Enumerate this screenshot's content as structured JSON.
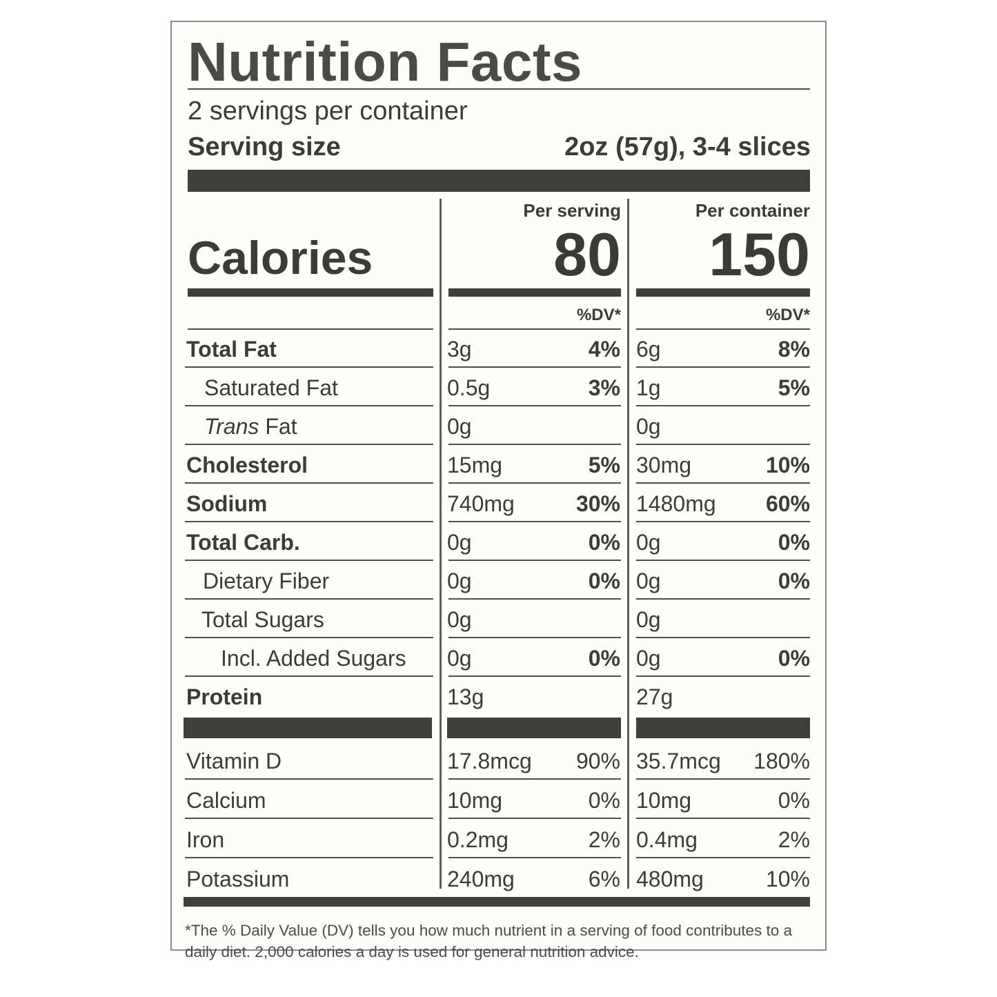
{
  "title": "Nutrition Facts",
  "servings_per_container": "2 servings per container",
  "serving_size_label": "Serving size",
  "serving_size_value": "2oz (57g), 3-4 slices",
  "calories_label": "Calories",
  "per_serving_label": "Per serving",
  "per_container_label": "Per container",
  "calories_per_serving": "80",
  "calories_per_container": "150",
  "dv_header": "%DV*",
  "nutrients": [
    {
      "name": "Total Fat",
      "serv_amt": "3g",
      "serv_dv": "4%",
      "cont_amt": "6g",
      "cont_dv": "8%"
    },
    {
      "name": "Saturated Fat",
      "serv_amt": "0.5g",
      "serv_dv": "3%",
      "cont_amt": "1g",
      "cont_dv": "5%"
    },
    {
      "name_italic": "Trans",
      "name_rest": " Fat",
      "serv_amt": "0g",
      "serv_dv": "",
      "cont_amt": "0g",
      "cont_dv": ""
    },
    {
      "name": "Cholesterol",
      "serv_amt": "15mg",
      "serv_dv": "5%",
      "cont_amt": "30mg",
      "cont_dv": "10%"
    },
    {
      "name": "Sodium",
      "serv_amt": "740mg",
      "serv_dv": "30%",
      "cont_amt": "1480mg",
      "cont_dv": "60%"
    },
    {
      "name": "Total Carb.",
      "serv_amt": "0g",
      "serv_dv": "0%",
      "cont_amt": "0g",
      "cont_dv": "0%"
    },
    {
      "name": "Dietary Fiber",
      "serv_amt": "0g",
      "serv_dv": "0%",
      "cont_amt": "0g",
      "cont_dv": "0%"
    },
    {
      "name": "Total Sugars",
      "serv_amt": "0g",
      "serv_dv": "",
      "cont_amt": "0g",
      "cont_dv": ""
    },
    {
      "name": "Incl. Added Sugars",
      "serv_amt": "0g",
      "serv_dv": "0%",
      "cont_amt": "0g",
      "cont_dv": "0%"
    },
    {
      "name": "Protein",
      "serv_amt": "13g",
      "serv_dv": "",
      "cont_amt": "27g",
      "cont_dv": ""
    }
  ],
  "vitamins": [
    {
      "name": "Vitamin D",
      "serv_amt": "17.8mcg",
      "serv_dv": "90%",
      "cont_amt": "35.7mcg",
      "cont_dv": "180%"
    },
    {
      "name": "Calcium",
      "serv_amt": "10mg",
      "serv_dv": "0%",
      "cont_amt": "10mg",
      "cont_dv": "0%"
    },
    {
      "name": "Iron",
      "serv_amt": "0.2mg",
      "serv_dv": "2%",
      "cont_amt": "0.4mg",
      "cont_dv": "2%"
    },
    {
      "name": "Potassium",
      "serv_amt": "240mg",
      "serv_dv": "6%",
      "cont_amt": "480mg",
      "cont_dv": "10%"
    }
  ],
  "footnote": "*The % Daily Value (DV) tells you how much nutrient in a serving of food contributes to a daily diet. 2,000 calories a day is used for general nutrition advice."
}
